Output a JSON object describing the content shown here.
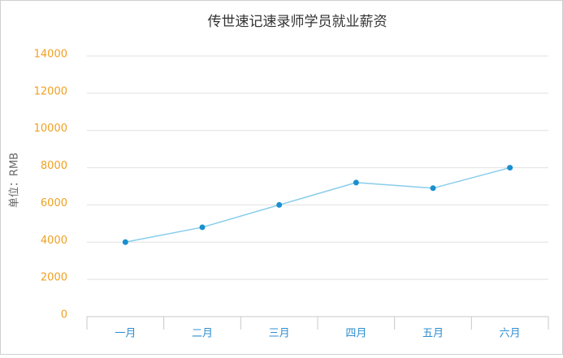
{
  "chart_data": {
    "type": "line",
    "title": "传世速记速录师学员就业薪资",
    "y_label": "单位：RMB",
    "categories": [
      "一月",
      "二月",
      "三月",
      "四月",
      "五月",
      "六月"
    ],
    "values": [
      4000,
      4800,
      6000,
      7200,
      6900,
      8000
    ],
    "color": "#87cdeb",
    "marker_color": "#1a8fcf",
    "ylim": [
      0,
      14000
    ],
    "yticks": [
      0,
      2000,
      4000,
      6000,
      8000,
      10000,
      12000,
      14000
    ],
    "ytick_color": "#f0a020",
    "xtick_color": "#2f8fd0",
    "grid": true
  }
}
